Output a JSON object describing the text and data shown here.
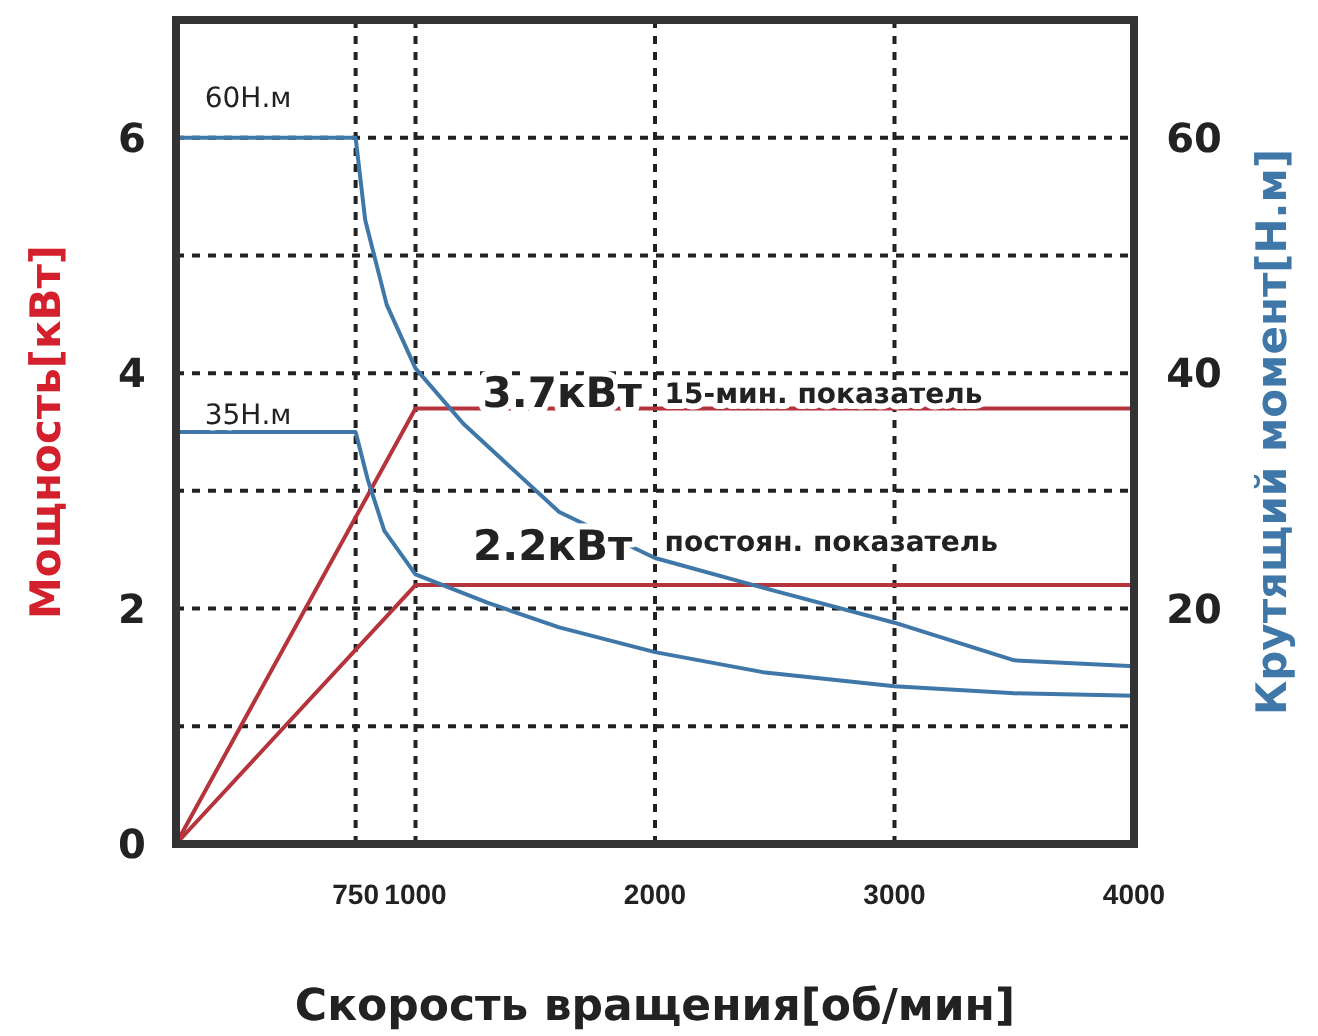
{
  "chart_data": {
    "type": "line",
    "xlabel": "Скорость вращения[об/мин]",
    "ylabel": "Мощность[кВт]",
    "y2label": "Крутящий момент[Н.м]",
    "xlim": [
      0,
      4000
    ],
    "xticks": [
      750,
      1000,
      2000,
      3000,
      4000
    ],
    "ylim": [
      0,
      7
    ],
    "yticks": [
      0,
      {
        "value": 1,
        "label": null
      },
      2,
      {
        "value": 3,
        "label": null
      },
      4,
      {
        "value": 5,
        "label": null
      },
      6
    ],
    "y2lim": [
      0,
      70
    ],
    "y2ticks": [
      20,
      40,
      60
    ],
    "grid": true,
    "marker": "none",
    "line_style": "solid",
    "series": [
      {
        "color": "#b5343c",
        "x": [
          0,
          1000,
          4000
        ],
        "values": [
          0,
          3.7,
          3.7
        ]
      },
      {
        "color": "#b5343c",
        "x": [
          0,
          1000,
          4000
        ],
        "values": [
          0,
          2.2,
          2.2
        ]
      },
      {
        "color": "#3f78a8",
        "axis": "y2",
        "x": [
          0,
          750,
          790,
          880,
          1000,
          1200,
          1600,
          2000,
          2500,
          3000,
          3500,
          4000
        ],
        "values": [
          60,
          60,
          53,
          45.8,
          40.4,
          35.7,
          28.2,
          24.3,
          21.5,
          18.8,
          15.6,
          15.1
        ]
      },
      {
        "color": "#3f78a8",
        "axis": "y2",
        "x": [
          0,
          750,
          800,
          870,
          1000,
          1300,
          1600,
          2000,
          2450,
          3000,
          3500,
          4000
        ],
        "values": [
          35,
          35,
          31,
          26.6,
          22.9,
          20.5,
          18.4,
          16.3,
          14.6,
          13.4,
          12.8,
          12.6
        ]
      }
    ],
    "annotations": [
      "60Н.м",
      "35Н.м",
      "3.7кВт",
      "15-мин. показатель",
      "2.2кВт",
      "постоян. показатель"
    ]
  }
}
